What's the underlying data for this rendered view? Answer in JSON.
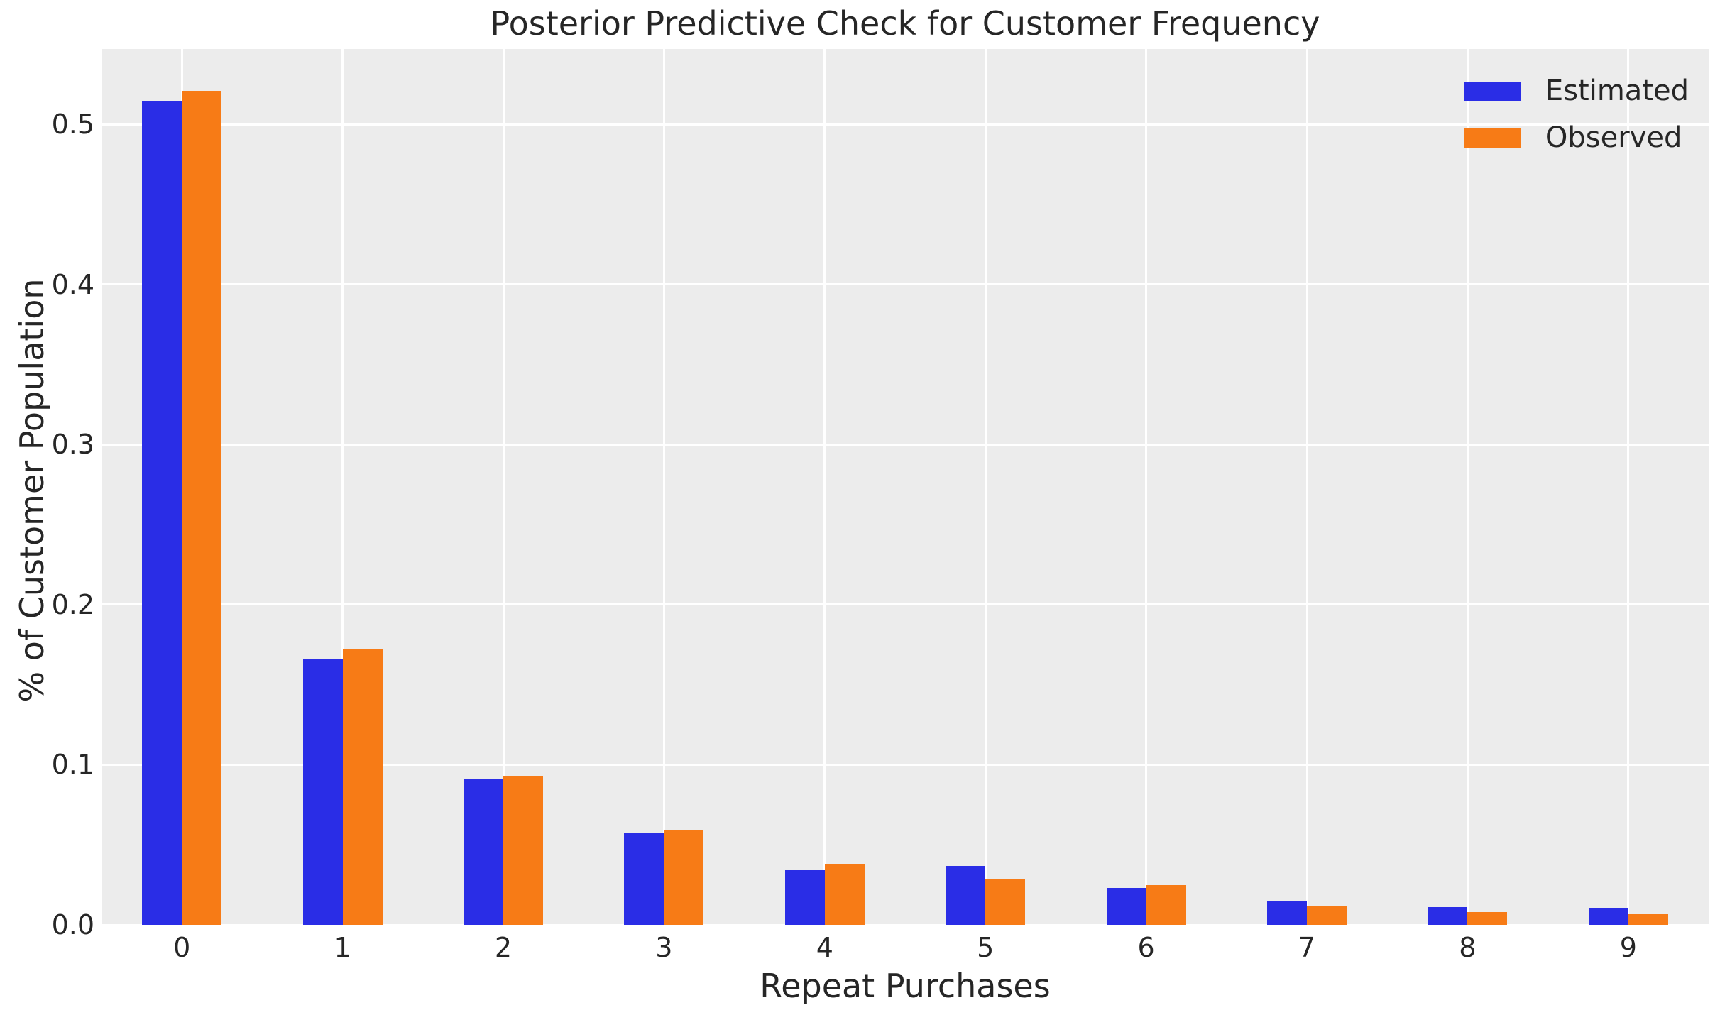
{
  "chart_data": {
    "type": "bar",
    "title": "Posterior Predictive Check for Customer Frequency",
    "xlabel": "Repeat Purchases",
    "ylabel": "% of Customer Population",
    "categories": [
      "0",
      "1",
      "2",
      "3",
      "4",
      "5",
      "6",
      "7",
      "8",
      "9"
    ],
    "series": [
      {
        "name": "Estimated",
        "color": "#2a2de6",
        "values": [
          0.514,
          0.166,
          0.091,
          0.057,
          0.034,
          0.037,
          0.023,
          0.015,
          0.011,
          0.0105
        ]
      },
      {
        "name": "Observed",
        "color": "#f77b16",
        "values": [
          0.521,
          0.172,
          0.093,
          0.059,
          0.038,
          0.029,
          0.025,
          0.012,
          0.008,
          0.0065
        ]
      }
    ],
    "ylim": [
      0,
      0.547
    ],
    "yticks": [
      0.0,
      0.1,
      0.2,
      0.3,
      0.4,
      0.5
    ],
    "ytick_labels": [
      "0.0",
      "0.1",
      "0.2",
      "0.3",
      "0.4",
      "0.5"
    ],
    "grid": "on",
    "gridline_color": "#ffffff",
    "plot_background": "#ececec",
    "text_color": "#262626",
    "legend_position": "upper right"
  }
}
